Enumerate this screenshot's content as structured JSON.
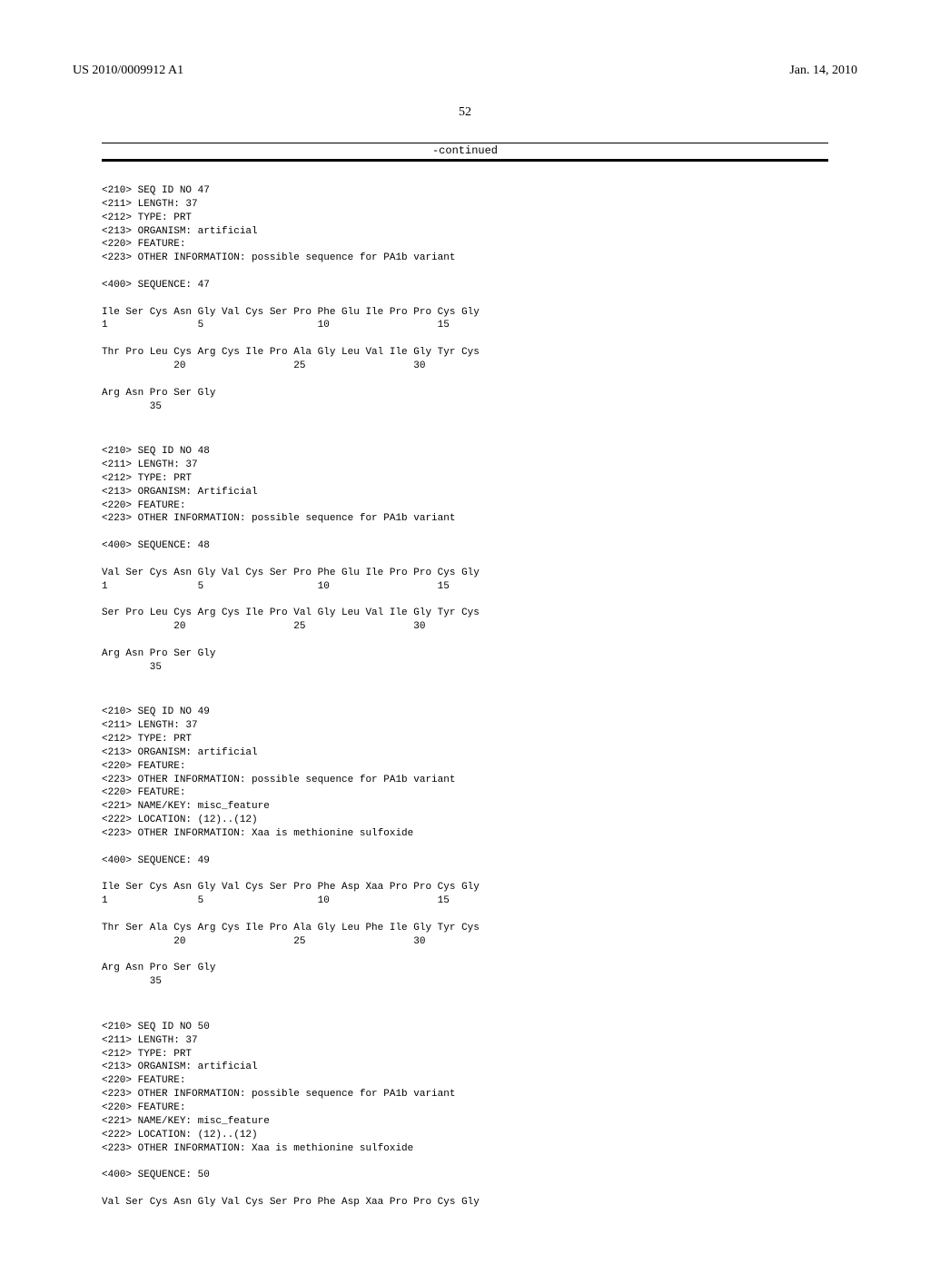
{
  "header": {
    "publication_number": "US 2010/0009912 A1",
    "publication_date": "Jan. 14, 2010"
  },
  "page_number": "52",
  "continued_label": "-continued",
  "sequences": [
    {
      "meta": [
        "<210> SEQ ID NO 47",
        "<211> LENGTH: 37",
        "<212> TYPE: PRT",
        "<213> ORGANISM: artificial",
        "<220> FEATURE:",
        "<223> OTHER INFORMATION: possible sequence for PA1b variant"
      ],
      "sequence_tag": "<400> SEQUENCE: 47",
      "lines": [
        "Ile Ser Cys Asn Gly Val Cys Ser Pro Phe Glu Ile Pro Pro Cys Gly",
        "1               5                   10                  15",
        "",
        "Thr Pro Leu Cys Arg Cys Ile Pro Ala Gly Leu Val Ile Gly Tyr Cys",
        "            20                  25                  30",
        "",
        "Arg Asn Pro Ser Gly",
        "        35"
      ]
    },
    {
      "meta": [
        "<210> SEQ ID NO 48",
        "<211> LENGTH: 37",
        "<212> TYPE: PRT",
        "<213> ORGANISM: Artificial",
        "<220> FEATURE:",
        "<223> OTHER INFORMATION: possible sequence for PA1b variant"
      ],
      "sequence_tag": "<400> SEQUENCE: 48",
      "lines": [
        "Val Ser Cys Asn Gly Val Cys Ser Pro Phe Glu Ile Pro Pro Cys Gly",
        "1               5                   10                  15",
        "",
        "Ser Pro Leu Cys Arg Cys Ile Pro Val Gly Leu Val Ile Gly Tyr Cys",
        "            20                  25                  30",
        "",
        "Arg Asn Pro Ser Gly",
        "        35"
      ]
    },
    {
      "meta": [
        "<210> SEQ ID NO 49",
        "<211> LENGTH: 37",
        "<212> TYPE: PRT",
        "<213> ORGANISM: artificial",
        "<220> FEATURE:",
        "<223> OTHER INFORMATION: possible sequence for PA1b variant",
        "<220> FEATURE:",
        "<221> NAME/KEY: misc_feature",
        "<222> LOCATION: (12)..(12)",
        "<223> OTHER INFORMATION: Xaa is methionine sulfoxide"
      ],
      "sequence_tag": "<400> SEQUENCE: 49",
      "lines": [
        "Ile Ser Cys Asn Gly Val Cys Ser Pro Phe Asp Xaa Pro Pro Cys Gly",
        "1               5                   10                  15",
        "",
        "Thr Ser Ala Cys Arg Cys Ile Pro Ala Gly Leu Phe Ile Gly Tyr Cys",
        "            20                  25                  30",
        "",
        "Arg Asn Pro Ser Gly",
        "        35"
      ]
    },
    {
      "meta": [
        "<210> SEQ ID NO 50",
        "<211> LENGTH: 37",
        "<212> TYPE: PRT",
        "<213> ORGANISM: artificial",
        "<220> FEATURE:",
        "<223> OTHER INFORMATION: possible sequence for PA1b variant",
        "<220> FEATURE:",
        "<221> NAME/KEY: misc_feature",
        "<222> LOCATION: (12)..(12)",
        "<223> OTHER INFORMATION: Xaa is methionine sulfoxide"
      ],
      "sequence_tag": "<400> SEQUENCE: 50",
      "lines": [
        "Val Ser Cys Asn Gly Val Cys Ser Pro Phe Asp Xaa Pro Pro Cys Gly"
      ]
    }
  ]
}
